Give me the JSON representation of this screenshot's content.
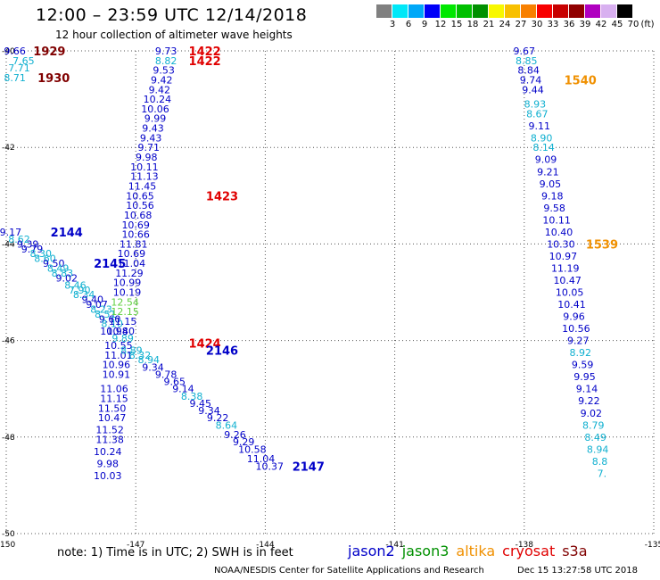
{
  "header": {
    "title": "12:00  –  23:59  UTC  12/14/2018",
    "subtitle": "12 hour collection of altimeter wave heights"
  },
  "legend": {
    "unit": "(ft)",
    "bins": [
      {
        "label": "3",
        "color": "#808080"
      },
      {
        "label": "6",
        "color": "#00e8f8"
      },
      {
        "label": "9",
        "color": "#00a8f8"
      },
      {
        "label": "12",
        "color": "#0000f8"
      },
      {
        "label": "15",
        "color": "#00e800"
      },
      {
        "label": "18",
        "color": "#00c000"
      },
      {
        "label": "21",
        "color": "#009000"
      },
      {
        "label": "24",
        "color": "#f8f800"
      },
      {
        "label": "27",
        "color": "#f8c000"
      },
      {
        "label": "30",
        "color": "#f88000"
      },
      {
        "label": "33",
        "color": "#f80000"
      },
      {
        "label": "36",
        "color": "#c80000"
      },
      {
        "label": "39",
        "color": "#900000"
      },
      {
        "label": "42",
        "color": "#b000c0"
      },
      {
        "label": "45",
        "color": "#d8b0f0"
      },
      {
        "label": "70",
        "color": "#000000"
      }
    ]
  },
  "colors": {
    "cyan": "#10b0d0",
    "blue": "#0000c8",
    "green": "#60d040",
    "red": "#e00000",
    "darkred": "#800000",
    "orange": "#f09000"
  },
  "axes": {
    "lon_ticks": [
      "-150",
      "-147",
      "-144",
      "-141",
      "-138",
      "-135"
    ],
    "lat_ticks": [
      "-40",
      "-42",
      "-44",
      "-46",
      "-48",
      "-50"
    ],
    "lon_range": [
      -150,
      -135
    ],
    "lat_range": [
      -50,
      -40
    ]
  },
  "tracks": [
    {
      "name": "left-track",
      "points": [
        {
          "lon": -149.8,
          "lat": -40.0,
          "v": "9.66",
          "c": "blue"
        },
        {
          "lon": -149.6,
          "lat": -40.2,
          "v": "7.65",
          "c": "cyan"
        },
        {
          "lon": -149.7,
          "lat": -40.35,
          "v": "7.71",
          "c": "cyan"
        },
        {
          "lon": -149.8,
          "lat": -40.55,
          "v": "8.71",
          "c": "cyan"
        },
        {
          "lon": -149.9,
          "lat": -43.75,
          "v": "9.17",
          "c": "blue"
        },
        {
          "lon": -149.7,
          "lat": -43.9,
          "v": "8.62",
          "c": "cyan"
        },
        {
          "lon": -149.5,
          "lat": -44.0,
          "v": "9.39",
          "c": "blue"
        },
        {
          "lon": -149.4,
          "lat": -44.1,
          "v": "9.79",
          "c": "blue"
        },
        {
          "lon": -149.2,
          "lat": -44.2,
          "v": "8.30",
          "c": "cyan"
        },
        {
          "lon": -149.1,
          "lat": -44.3,
          "v": "8.60",
          "c": "cyan"
        },
        {
          "lon": -148.9,
          "lat": -44.4,
          "v": "9.50",
          "c": "blue"
        },
        {
          "lon": -148.8,
          "lat": -44.5,
          "v": "8.49",
          "c": "cyan"
        },
        {
          "lon": -148.7,
          "lat": -44.6,
          "v": "8.83",
          "c": "cyan"
        },
        {
          "lon": -148.6,
          "lat": -44.7,
          "v": "9.02",
          "c": "blue"
        },
        {
          "lon": -148.4,
          "lat": -44.85,
          "v": "8.46",
          "c": "cyan"
        },
        {
          "lon": -148.3,
          "lat": -44.95,
          "v": "7.90",
          "c": "cyan"
        },
        {
          "lon": -148.2,
          "lat": -45.05,
          "v": "8.34",
          "c": "cyan"
        },
        {
          "lon": -148.0,
          "lat": -45.15,
          "v": "9.40",
          "c": "blue"
        },
        {
          "lon": -147.9,
          "lat": -45.25,
          "v": "9.07",
          "c": "blue"
        },
        {
          "lon": -147.8,
          "lat": -45.35,
          "v": "8.23",
          "c": "cyan"
        },
        {
          "lon": -147.7,
          "lat": -45.45,
          "v": "8.51",
          "c": "cyan"
        },
        {
          "lon": -147.6,
          "lat": -45.55,
          "v": "9.60",
          "c": "blue"
        },
        {
          "lon": -147.55,
          "lat": -45.65,
          "v": "8.10",
          "c": "cyan"
        },
        {
          "lon": -147.5,
          "lat": -45.8,
          "v": "10.98",
          "c": "blue"
        }
      ]
    },
    {
      "name": "middle-track",
      "points": [
        {
          "lon": -146.3,
          "lat": -40.0,
          "v": "9.73",
          "c": "blue"
        },
        {
          "lon": -146.3,
          "lat": -40.2,
          "v": "8.82",
          "c": "cyan"
        },
        {
          "lon": -146.35,
          "lat": -40.4,
          "v": "9.53",
          "c": "blue"
        },
        {
          "lon": -146.4,
          "lat": -40.6,
          "v": "9.42",
          "c": "blue"
        },
        {
          "lon": -146.45,
          "lat": -40.8,
          "v": "9.42",
          "c": "blue"
        },
        {
          "lon": -146.5,
          "lat": -41.0,
          "v": "10.24",
          "c": "blue"
        },
        {
          "lon": -146.55,
          "lat": -41.2,
          "v": "10.06",
          "c": "blue"
        },
        {
          "lon": -146.55,
          "lat": -41.4,
          "v": "9.99",
          "c": "blue"
        },
        {
          "lon": -146.6,
          "lat": -41.6,
          "v": "9.43",
          "c": "blue"
        },
        {
          "lon": -146.65,
          "lat": -41.8,
          "v": "9.43",
          "c": "blue"
        },
        {
          "lon": -146.7,
          "lat": -42.0,
          "v": "9.71",
          "c": "blue"
        },
        {
          "lon": -146.75,
          "lat": -42.2,
          "v": "9.98",
          "c": "blue"
        },
        {
          "lon": -146.8,
          "lat": -42.4,
          "v": "10.11",
          "c": "blue"
        },
        {
          "lon": -146.8,
          "lat": -42.6,
          "v": "11.13",
          "c": "blue"
        },
        {
          "lon": -146.85,
          "lat": -42.8,
          "v": "11.45",
          "c": "blue"
        },
        {
          "lon": -146.9,
          "lat": -43.0,
          "v": "10.65",
          "c": "blue"
        },
        {
          "lon": -146.9,
          "lat": -43.2,
          "v": "10.56",
          "c": "blue"
        },
        {
          "lon": -146.95,
          "lat": -43.4,
          "v": "10.68",
          "c": "blue"
        },
        {
          "lon": -147.0,
          "lat": -43.6,
          "v": "10.69",
          "c": "blue"
        },
        {
          "lon": -147.0,
          "lat": -43.8,
          "v": "10.66",
          "c": "blue"
        },
        {
          "lon": -147.05,
          "lat": -44.0,
          "v": "11.81",
          "c": "blue"
        },
        {
          "lon": -147.1,
          "lat": -44.2,
          "v": "10.69",
          "c": "blue"
        },
        {
          "lon": -147.1,
          "lat": -44.4,
          "v": "11.04",
          "c": "blue"
        },
        {
          "lon": -147.15,
          "lat": -44.6,
          "v": "11.29",
          "c": "blue"
        },
        {
          "lon": -147.2,
          "lat": -44.8,
          "v": "10.99",
          "c": "blue"
        },
        {
          "lon": -147.2,
          "lat": -45.0,
          "v": "10.19",
          "c": "blue"
        },
        {
          "lon": -147.25,
          "lat": -45.2,
          "v": "12.54",
          "c": "green"
        },
        {
          "lon": -147.25,
          "lat": -45.4,
          "v": "12.15",
          "c": "green"
        },
        {
          "lon": -147.3,
          "lat": -45.6,
          "v": "11.15",
          "c": "blue"
        },
        {
          "lon": -147.35,
          "lat": -45.8,
          "v": "10.40",
          "c": "blue"
        },
        {
          "lon": -147.4,
          "lat": -46.1,
          "v": "10.55",
          "c": "blue"
        },
        {
          "lon": -147.4,
          "lat": -46.3,
          "v": "11.01",
          "c": "blue"
        },
        {
          "lon": -147.45,
          "lat": -46.5,
          "v": "10.96",
          "c": "blue"
        },
        {
          "lon": -147.45,
          "lat": -46.7,
          "v": "10.91",
          "c": "blue"
        },
        {
          "lon": -147.5,
          "lat": -47.0,
          "v": "11.06",
          "c": "blue"
        },
        {
          "lon": -147.5,
          "lat": -47.2,
          "v": "11.15",
          "c": "blue"
        },
        {
          "lon": -147.55,
          "lat": -47.4,
          "v": "11.50",
          "c": "blue"
        },
        {
          "lon": -147.55,
          "lat": -47.6,
          "v": "10.47",
          "c": "blue"
        },
        {
          "lon": -147.6,
          "lat": -47.85,
          "v": "11.52",
          "c": "blue"
        },
        {
          "lon": -147.6,
          "lat": -48.05,
          "v": "11.38",
          "c": "blue"
        },
        {
          "lon": -147.65,
          "lat": -48.3,
          "v": "10.24",
          "c": "blue"
        },
        {
          "lon": -147.65,
          "lat": -48.55,
          "v": "9.98",
          "c": "blue"
        },
        {
          "lon": -147.65,
          "lat": -48.8,
          "v": "10.03",
          "c": "blue"
        }
      ]
    },
    {
      "name": "diagonal-track",
      "points": [
        {
          "lon": -147.3,
          "lat": -45.95,
          "v": "9.89",
          "c": "cyan"
        },
        {
          "lon": -147.1,
          "lat": -46.2,
          "v": "8.89",
          "c": "cyan"
        },
        {
          "lon": -146.9,
          "lat": -46.3,
          "v": "8.32",
          "c": "cyan"
        },
        {
          "lon": -146.7,
          "lat": -46.4,
          "v": "8.94",
          "c": "cyan"
        },
        {
          "lon": -146.6,
          "lat": -46.55,
          "v": "9.34",
          "c": "blue"
        },
        {
          "lon": -146.3,
          "lat": -46.7,
          "v": "9.78",
          "c": "blue"
        },
        {
          "lon": -146.1,
          "lat": -46.85,
          "v": "9.65",
          "c": "blue"
        },
        {
          "lon": -145.9,
          "lat": -47.0,
          "v": "9.14",
          "c": "blue"
        },
        {
          "lon": -145.7,
          "lat": -47.15,
          "v": "8.38",
          "c": "cyan"
        },
        {
          "lon": -145.5,
          "lat": -47.3,
          "v": "9.45",
          "c": "blue"
        },
        {
          "lon": -145.3,
          "lat": -47.45,
          "v": "9.34",
          "c": "blue"
        },
        {
          "lon": -145.1,
          "lat": -47.6,
          "v": "9.22",
          "c": "blue"
        },
        {
          "lon": -144.9,
          "lat": -47.75,
          "v": "8.64",
          "c": "cyan"
        },
        {
          "lon": -144.7,
          "lat": -47.95,
          "v": "9.26",
          "c": "blue"
        },
        {
          "lon": -144.5,
          "lat": -48.1,
          "v": "9.29",
          "c": "blue"
        },
        {
          "lon": -144.3,
          "lat": -48.25,
          "v": "10.58",
          "c": "blue"
        },
        {
          "lon": -144.1,
          "lat": -48.45,
          "v": "11.04",
          "c": "blue"
        },
        {
          "lon": -143.9,
          "lat": -48.6,
          "v": "10.37",
          "c": "blue"
        }
      ]
    },
    {
      "name": "right-track",
      "points": [
        {
          "lon": -138.0,
          "lat": -40.0,
          "v": "9.67",
          "c": "blue"
        },
        {
          "lon": -137.95,
          "lat": -40.2,
          "v": "8.85",
          "c": "cyan"
        },
        {
          "lon": -137.9,
          "lat": -40.4,
          "v": "8.84",
          "c": "blue"
        },
        {
          "lon": -137.85,
          "lat": -40.6,
          "v": "9.74",
          "c": "blue"
        },
        {
          "lon": -137.8,
          "lat": -40.8,
          "v": "9.44",
          "c": "blue"
        },
        {
          "lon": -137.75,
          "lat": -41.1,
          "v": "8.93",
          "c": "cyan"
        },
        {
          "lon": -137.7,
          "lat": -41.3,
          "v": "8.67",
          "c": "cyan"
        },
        {
          "lon": -137.65,
          "lat": -41.55,
          "v": "9.11",
          "c": "blue"
        },
        {
          "lon": -137.6,
          "lat": -41.8,
          "v": "8.90",
          "c": "cyan"
        },
        {
          "lon": -137.55,
          "lat": -42.0,
          "v": "8.14",
          "c": "cyan"
        },
        {
          "lon": -137.5,
          "lat": -42.25,
          "v": "9.09",
          "c": "blue"
        },
        {
          "lon": -137.45,
          "lat": -42.5,
          "v": "9.21",
          "c": "blue"
        },
        {
          "lon": -137.4,
          "lat": -42.75,
          "v": "9.05",
          "c": "blue"
        },
        {
          "lon": -137.35,
          "lat": -43.0,
          "v": "9.18",
          "c": "blue"
        },
        {
          "lon": -137.3,
          "lat": -43.25,
          "v": "9.58",
          "c": "blue"
        },
        {
          "lon": -137.25,
          "lat": -43.5,
          "v": "10.11",
          "c": "blue"
        },
        {
          "lon": -137.2,
          "lat": -43.75,
          "v": "10.40",
          "c": "blue"
        },
        {
          "lon": -137.15,
          "lat": -44.0,
          "v": "10.30",
          "c": "blue"
        },
        {
          "lon": -137.1,
          "lat": -44.25,
          "v": "10.97",
          "c": "blue"
        },
        {
          "lon": -137.05,
          "lat": -44.5,
          "v": "11.19",
          "c": "blue"
        },
        {
          "lon": -137.0,
          "lat": -44.75,
          "v": "10.47",
          "c": "blue"
        },
        {
          "lon": -136.95,
          "lat": -45.0,
          "v": "10.05",
          "c": "blue"
        },
        {
          "lon": -136.9,
          "lat": -45.25,
          "v": "10.41",
          "c": "blue"
        },
        {
          "lon": -136.85,
          "lat": -45.5,
          "v": "9.96",
          "c": "blue"
        },
        {
          "lon": -136.8,
          "lat": -45.75,
          "v": "10.56",
          "c": "blue"
        },
        {
          "lon": -136.75,
          "lat": -46.0,
          "v": "9.27",
          "c": "blue"
        },
        {
          "lon": -136.7,
          "lat": -46.25,
          "v": "8.92",
          "c": "cyan"
        },
        {
          "lon": -136.65,
          "lat": -46.5,
          "v": "9.59",
          "c": "blue"
        },
        {
          "lon": -136.6,
          "lat": -46.75,
          "v": "9.95",
          "c": "blue"
        },
        {
          "lon": -136.55,
          "lat": -47.0,
          "v": "9.14",
          "c": "blue"
        },
        {
          "lon": -136.5,
          "lat": -47.25,
          "v": "9.22",
          "c": "blue"
        },
        {
          "lon": -136.45,
          "lat": -47.5,
          "v": "9.02",
          "c": "blue"
        },
        {
          "lon": -136.4,
          "lat": -47.75,
          "v": "8.79",
          "c": "cyan"
        },
        {
          "lon": -136.35,
          "lat": -48.0,
          "v": "8.49",
          "c": "cyan"
        },
        {
          "lon": -136.3,
          "lat": -48.25,
          "v": "8.94",
          "c": "cyan"
        },
        {
          "lon": -136.25,
          "lat": -48.5,
          "v": "8.8",
          "c": "cyan"
        },
        {
          "lon": -136.2,
          "lat": -48.75,
          "v": "7.",
          "c": "cyan"
        }
      ]
    }
  ],
  "time_labels": [
    {
      "lon": -149.0,
      "lat": -40.0,
      "v": "1929",
      "c": "darkred"
    },
    {
      "lon": -148.9,
      "lat": -40.55,
      "v": "1930",
      "c": "darkred"
    },
    {
      "lon": -145.4,
      "lat": -40.0,
      "v": "1422",
      "c": "red"
    },
    {
      "lon": -145.4,
      "lat": -40.2,
      "v": "1422",
      "c": "red"
    },
    {
      "lon": -145.0,
      "lat": -43.0,
      "v": "1423",
      "c": "red"
    },
    {
      "lon": -148.6,
      "lat": -43.75,
      "v": "2144",
      "c": "blue"
    },
    {
      "lon": -147.6,
      "lat": -44.4,
      "v": "2145",
      "c": "blue"
    },
    {
      "lon": -145.4,
      "lat": -46.05,
      "v": "1424",
      "c": "red"
    },
    {
      "lon": -145.0,
      "lat": -46.2,
      "v": "2146",
      "c": "blue"
    },
    {
      "lon": -143.0,
      "lat": -48.6,
      "v": "2147",
      "c": "blue"
    },
    {
      "lon": -136.7,
      "lat": -40.6,
      "v": "1540",
      "c": "orange"
    },
    {
      "lon": -136.2,
      "lat": -44.0,
      "v": "1539",
      "c": "orange"
    }
  ],
  "note": "note:  1) Time is in UTC;  2) SWH is in feet",
  "satellites": [
    {
      "name": "jason2",
      "color": "#0000c8"
    },
    {
      "name": "jason3",
      "color": "#009000"
    },
    {
      "name": "altika",
      "color": "#f09000"
    },
    {
      "name": "cryosat",
      "color": "#e00000"
    },
    {
      "name": "s3a",
      "color": "#800000"
    }
  ],
  "footer": {
    "credit": "NOAA/NESDIS Center for Satellite Applications and Research",
    "date": "Dec 15 13:27:58 UTC 2018"
  }
}
